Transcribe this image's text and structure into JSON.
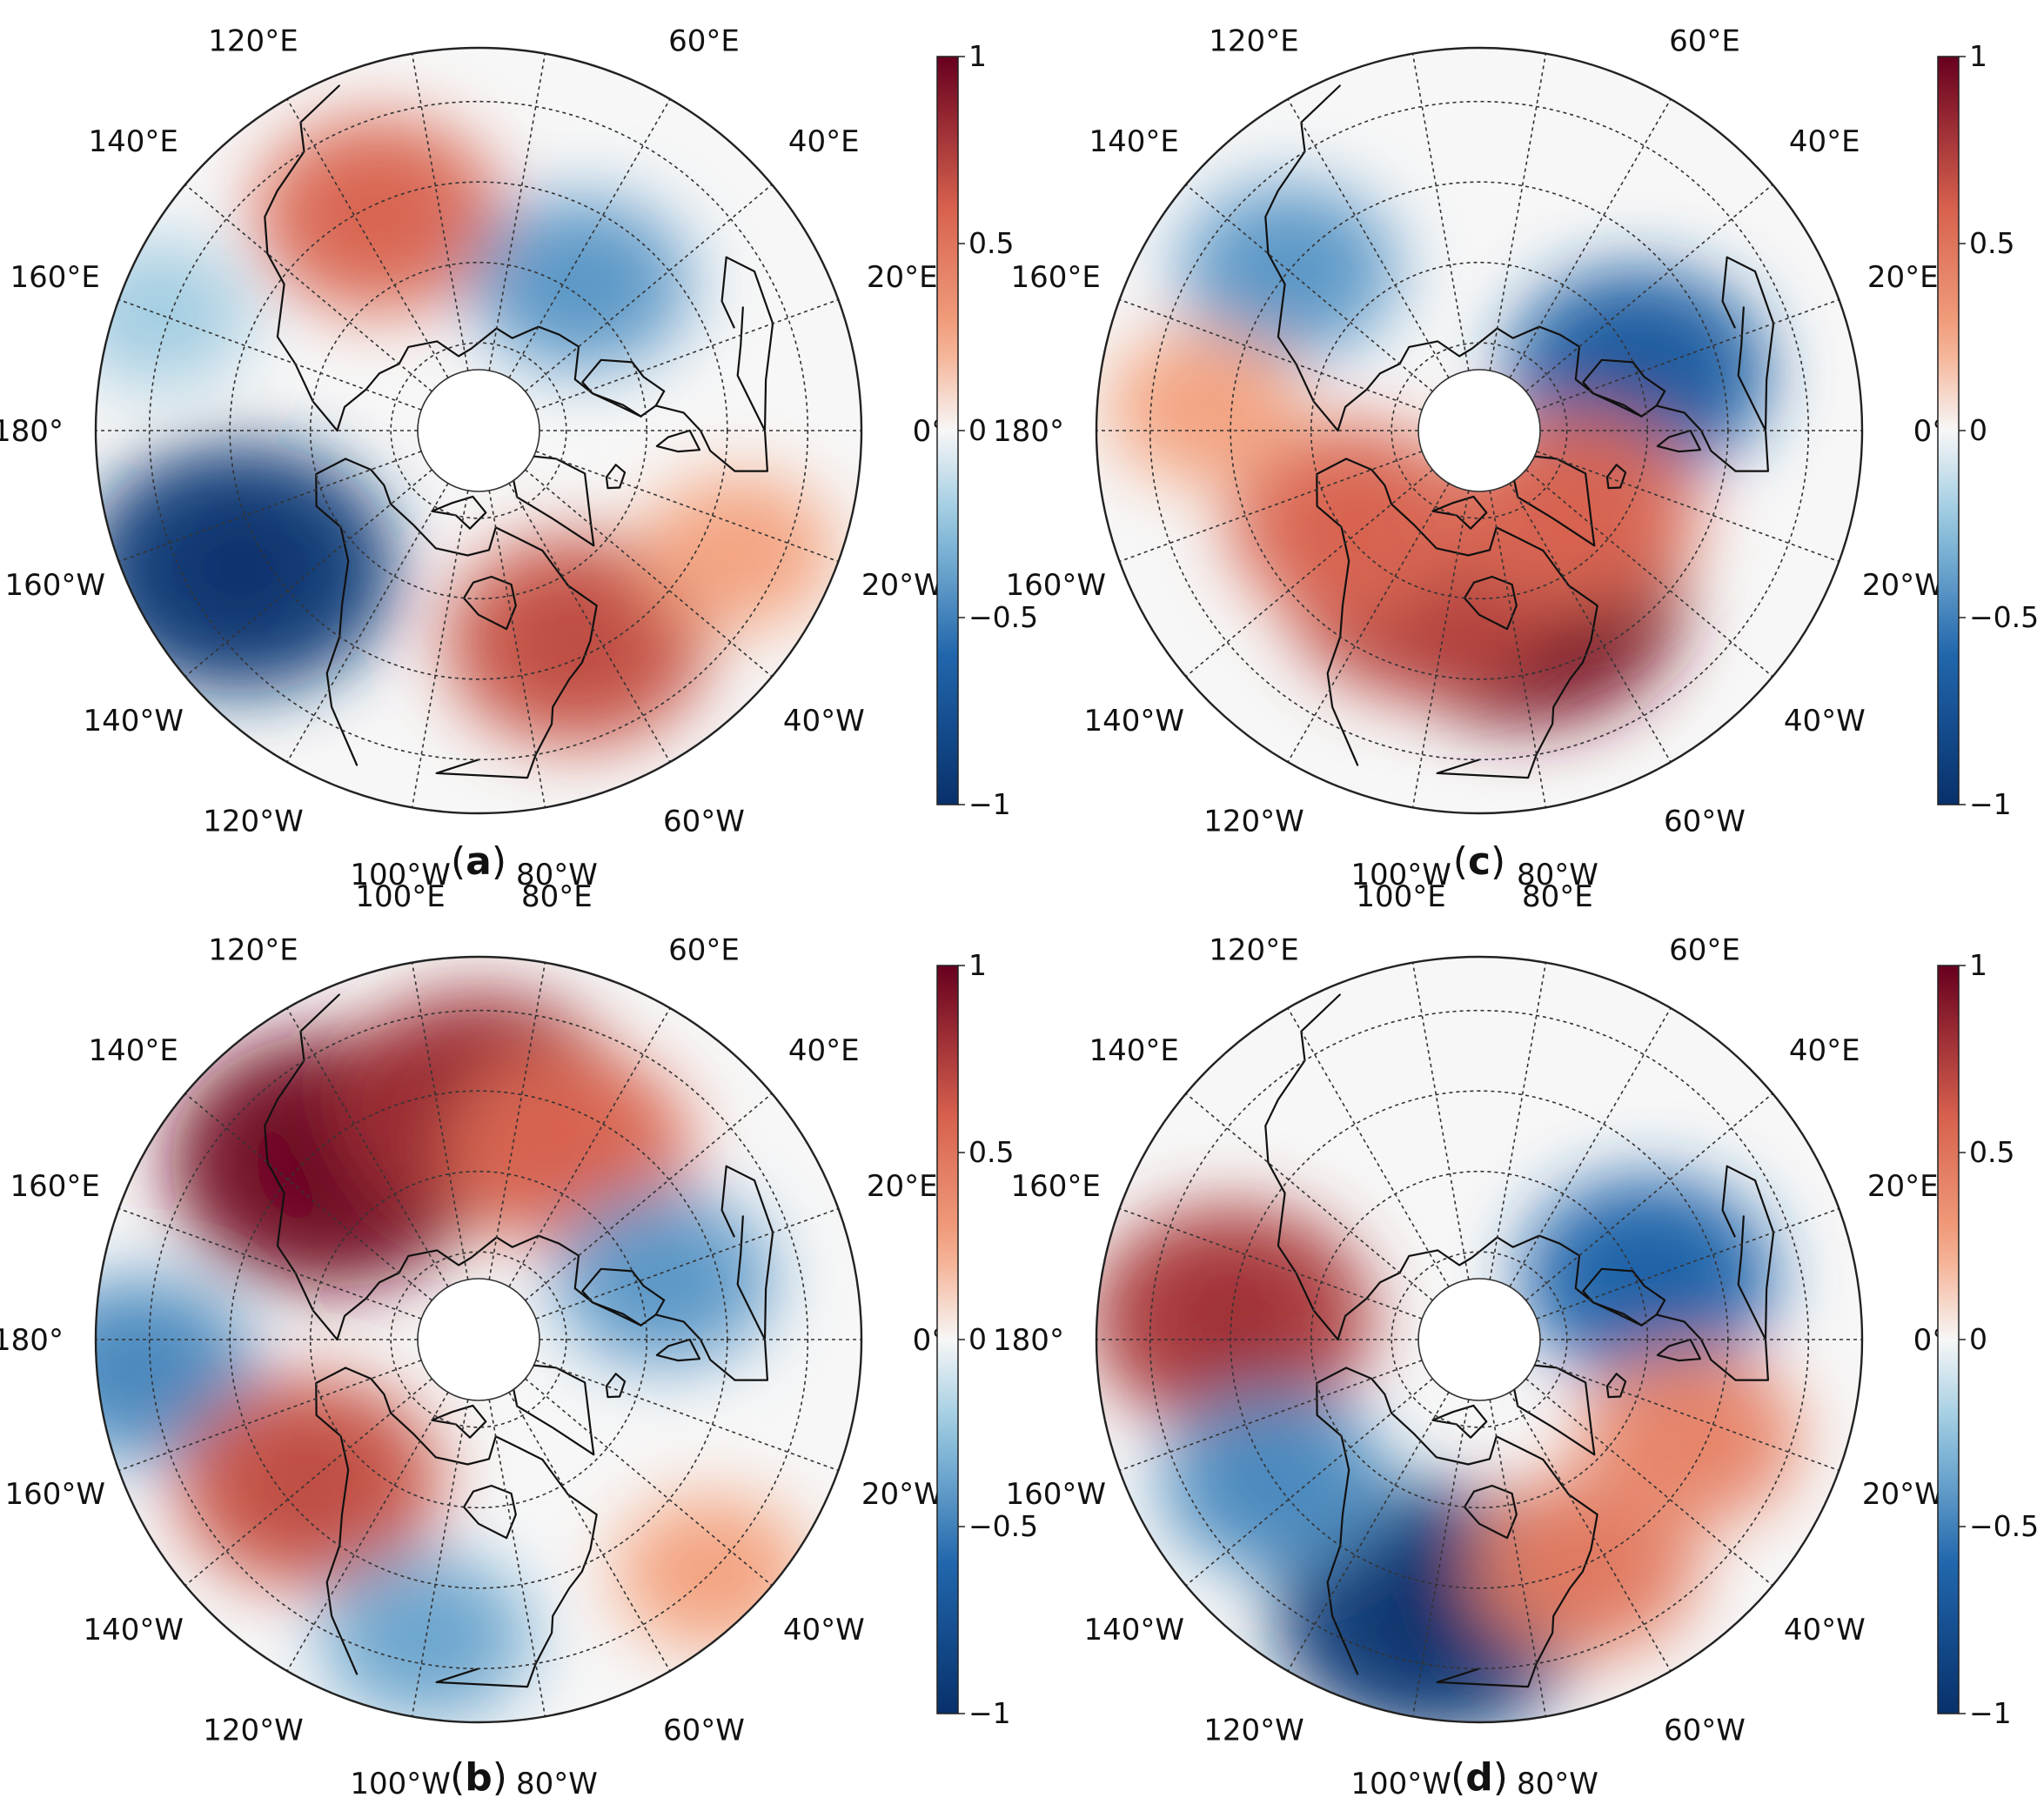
{
  "figure_type": "four-panel north polar stereographic correlation maps",
  "colorbar": {
    "min": -1,
    "max": 1,
    "tick_labels": [
      "1",
      "0.5",
      "0",
      "−0.5",
      "−1"
    ],
    "tick_values": [
      1,
      0.5,
      0,
      -0.5,
      -1
    ],
    "colormap": "RdBu_r",
    "colors": {
      "neg_strong": "#08306b",
      "neg_mid": "#2166ac",
      "neg_light": "#92c5de",
      "neutral": "#f7f7f7",
      "pos_light": "#f4a582",
      "pos_mid": "#d6604d",
      "pos_strong": "#67001f"
    }
  },
  "longitude_labels": {
    "lon_100E": "100°E",
    "lon_80E": "80°E",
    "lon_120E": "120°E",
    "lon_60E": "60°E",
    "lon_140E": "140°E",
    "lon_40E": "40°E",
    "lon_160E": "160°E",
    "lon_20E": "20°E",
    "lon_180": "180°",
    "lon_0": "0°",
    "lon_160W": "160°W",
    "lon_20W": "20°W",
    "lon_140W": "140°W",
    "lon_40W": "40°W",
    "lon_120W": "120°W",
    "lon_60W": "60°W",
    "lon_100W": "100°W",
    "lon_80W": "80°W"
  },
  "panels": [
    {
      "id": "a",
      "label_open": "(",
      "label_letter": "a",
      "label_close": ")",
      "anomalies": [
        {
          "name": "east-asia-positive",
          "lon": 115,
          "lat": 47,
          "value": 0.55
        },
        {
          "name": "siberia-negative",
          "lon": 55,
          "lat": 58,
          "value": -0.4
        },
        {
          "name": "north-pacific-negative",
          "lon": -150,
          "lat": 40,
          "value": -0.92
        },
        {
          "name": "east-north-america-positive",
          "lon": -65,
          "lat": 48,
          "value": 0.65
        },
        {
          "name": "north-atlantic-weak-positive",
          "lon": -25,
          "lat": 38,
          "value": 0.25
        },
        {
          "name": "west-pacific-weak-negative",
          "lon": 160,
          "lat": 28,
          "value": -0.2
        }
      ]
    },
    {
      "id": "b",
      "label_open": "(",
      "label_letter": "b",
      "label_close": ")",
      "anomalies": [
        {
          "name": "east-asia-strong-positive",
          "lon": 130,
          "lat": 48,
          "value": 0.95
        },
        {
          "name": "central-asia-positive",
          "lon": 90,
          "lat": 48,
          "value": 0.8
        },
        {
          "name": "eurasia-band-positive",
          "lon": 65,
          "lat": 52,
          "value": 0.55
        },
        {
          "name": "europe-negative",
          "lon": 18,
          "lat": 55,
          "value": -0.4
        },
        {
          "name": "central-pacific-negative",
          "lon": -175,
          "lat": 28,
          "value": -0.45
        },
        {
          "name": "north-america-west-positive",
          "lon": -140,
          "lat": 50,
          "value": 0.65
        },
        {
          "name": "north-america-negative",
          "lon": -100,
          "lat": 35,
          "value": -0.35
        },
        {
          "name": "north-atlantic-weak-positive",
          "lon": -45,
          "lat": 30,
          "value": 0.25
        }
      ]
    },
    {
      "id": "c",
      "label_open": "(",
      "label_letter": "c",
      "label_close": ")",
      "anomalies": [
        {
          "name": "east-asia-negative",
          "lon": 140,
          "lat": 45,
          "value": -0.4
        },
        {
          "name": "europe-negative",
          "lon": 20,
          "lat": 60,
          "value": -0.65
        },
        {
          "name": "canada-strong-positive",
          "lon": -75,
          "lat": 58,
          "value": 0.92
        },
        {
          "name": "north-america-positive",
          "lon": -110,
          "lat": 60,
          "value": 0.7
        },
        {
          "name": "alaska-positive",
          "lon": -145,
          "lat": 62,
          "value": 0.55
        },
        {
          "name": "greenland-positive",
          "lon": -40,
          "lat": 68,
          "value": 0.55
        },
        {
          "name": "north-pacific-weak-positive",
          "lon": 175,
          "lat": 40,
          "value": 0.25
        }
      ]
    },
    {
      "id": "d",
      "label_open": "(",
      "label_letter": "d",
      "label_close": ")",
      "anomalies": [
        {
          "name": "north-pacific-positive",
          "lon": 175,
          "lat": 45,
          "value": 0.75
        },
        {
          "name": "europe-negative",
          "lon": 20,
          "lat": 58,
          "value": -0.6
        },
        {
          "name": "north-america-strong-negative",
          "lon": -100,
          "lat": 40,
          "value": -0.92
        },
        {
          "name": "gulf-of-alaska-negative",
          "lon": -145,
          "lat": 45,
          "value": -0.45
        },
        {
          "name": "east-north-america-positive",
          "lon": -65,
          "lat": 45,
          "value": 0.45
        },
        {
          "name": "north-atlantic-positive",
          "lon": -25,
          "lat": 48,
          "value": 0.4
        }
      ]
    }
  ]
}
